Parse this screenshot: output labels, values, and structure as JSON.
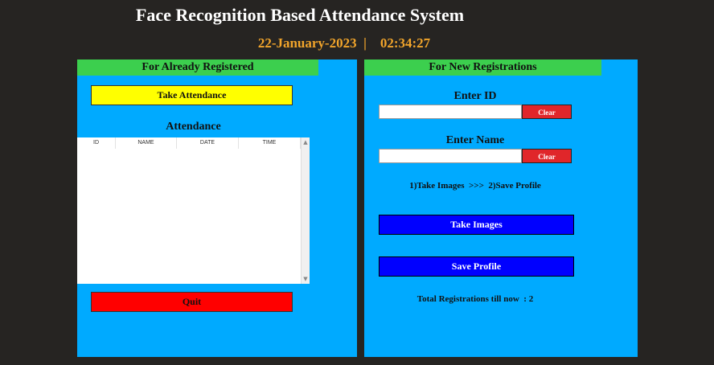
{
  "header": {
    "title": "Face Recognition Based Attendance System",
    "date": "22-January-2023",
    "separator": "|",
    "time": "02:34:27"
  },
  "left_panel": {
    "heading": "For Already Registered",
    "take_attendance_label": "Take Attendance",
    "attendance_title": "Attendance",
    "table_columns": [
      "ID",
      "NAME",
      "DATE",
      "TIME"
    ],
    "quit_label": "Quit"
  },
  "right_panel": {
    "heading": "For New Registrations",
    "id_label": "Enter ID",
    "id_value": "",
    "name_label": "Enter Name",
    "name_value": "",
    "clear_label": "Clear",
    "instructions": "1)Take Images  >>>  2)Save Profile",
    "take_images_label": "Take Images",
    "save_profile_label": "Save Profile",
    "total_registrations": "Total Registrations till now  : 2"
  },
  "colors": {
    "background": "#262422",
    "panel": "#00aaff",
    "heading_bar": "#3ccf4e",
    "date_text": "#f2a52b",
    "take_attendance": "#ffff00",
    "quit": "#ff0000",
    "action_blue": "#0000ff",
    "clear": "#e0262a"
  },
  "icons": {
    "scroll_up": "scroll-up-arrow-icon",
    "scroll_down": "scroll-down-arrow-icon"
  }
}
